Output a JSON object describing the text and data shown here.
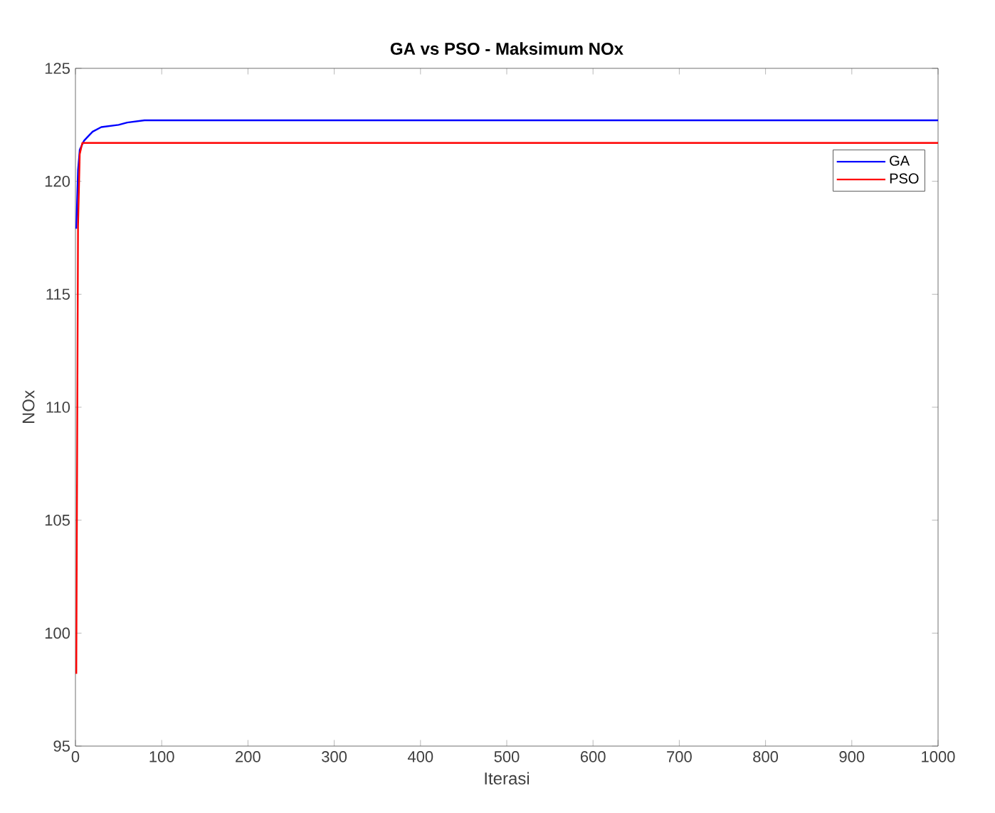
{
  "chart_data": {
    "type": "line",
    "title": "GA vs PSO - Maksimum NOx",
    "xlabel": "Iterasi",
    "ylabel": "NOx",
    "xlim": [
      0,
      1000
    ],
    "ylim": [
      95,
      125
    ],
    "xticks": [
      0,
      100,
      200,
      300,
      400,
      500,
      600,
      700,
      800,
      900,
      1000
    ],
    "yticks": [
      95,
      100,
      105,
      110,
      115,
      120,
      125
    ],
    "legend": "top right",
    "grid": false,
    "series": [
      {
        "name": "GA",
        "color": "#0000ff",
        "x": [
          1,
          3,
          5,
          10,
          15,
          20,
          30,
          50,
          60,
          80,
          1000
        ],
        "values": [
          117.9,
          120.5,
          121.4,
          121.8,
          122.0,
          122.2,
          122.4,
          122.5,
          122.6,
          122.7,
          122.7
        ]
      },
      {
        "name": "PSO",
        "color": "#ff0000",
        "x": [
          1,
          3,
          5,
          8,
          1000
        ],
        "values": [
          98.2,
          118,
          121.2,
          121.7,
          121.7
        ]
      }
    ]
  }
}
